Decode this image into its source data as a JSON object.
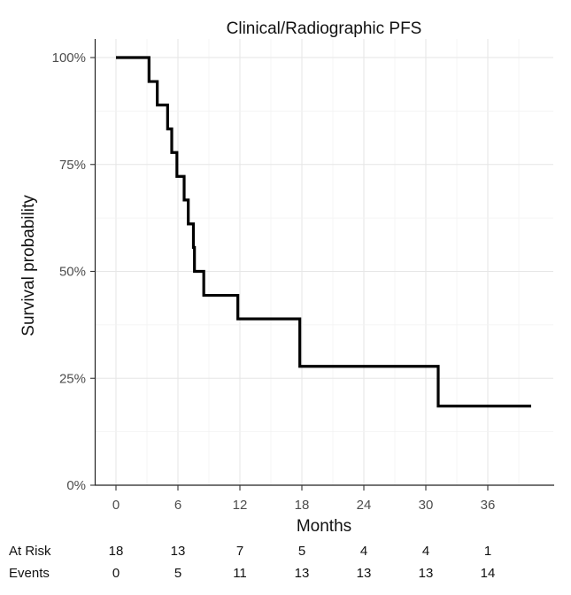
{
  "chart_data": {
    "type": "line",
    "step": true,
    "title": "Clinical/Radiographic PFS",
    "xlabel": "Months",
    "ylabel": "Survival probability",
    "xlim": [
      -2.5,
      40.2
    ],
    "ylim": [
      0,
      1
    ],
    "x_ticks": [
      0,
      6,
      12,
      18,
      24,
      30,
      36
    ],
    "y_ticks": [
      0,
      0.25,
      0.5,
      0.75,
      1.0
    ],
    "y_tick_labels": [
      "0%",
      "25%",
      "50%",
      "75%",
      "100%"
    ],
    "grid": true,
    "series": [
      {
        "points": [
          [
            0,
            1.0
          ],
          [
            3.2,
            0.944
          ],
          [
            4.0,
            0.889
          ],
          [
            5.0,
            0.833
          ],
          [
            5.4,
            0.778
          ],
          [
            5.9,
            0.722
          ],
          [
            6.6,
            0.667
          ],
          [
            7.0,
            0.611
          ],
          [
            7.5,
            0.556
          ],
          [
            7.6,
            0.5
          ],
          [
            8.5,
            0.444
          ],
          [
            11.8,
            0.389
          ],
          [
            17.8,
            0.278
          ],
          [
            31.2,
            0.185
          ],
          [
            40.2,
            0.185
          ]
        ]
      }
    ],
    "risk_table": {
      "times": [
        0,
        6,
        12,
        18,
        24,
        30,
        36
      ],
      "rows": [
        {
          "label": "At Risk",
          "values": [
            18,
            13,
            7,
            5,
            4,
            4,
            1
          ]
        },
        {
          "label": "Events",
          "values": [
            0,
            5,
            11,
            13,
            13,
            13,
            14
          ]
        }
      ]
    }
  }
}
